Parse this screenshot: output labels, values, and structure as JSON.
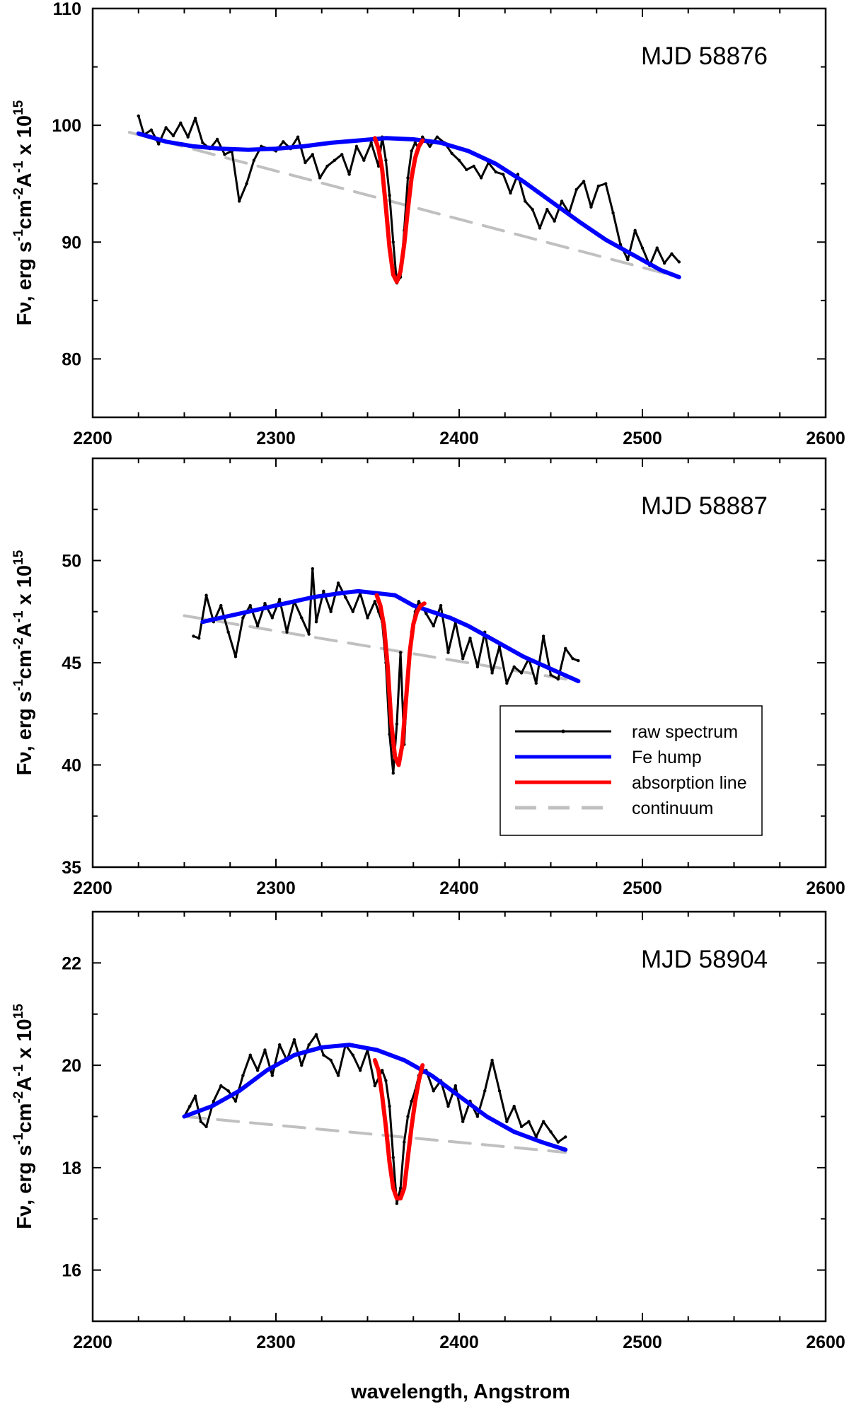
{
  "chart_data": {
    "type": "line",
    "xlabel": "wavelength, Angstrom",
    "ylabel_parts": {
      "prefix": "F",
      "nu": "ν",
      "main": ", erg s",
      "exp1": "-1",
      "mid1": "cm",
      "exp2": "-2",
      "mid2": "A",
      "exp3": "-1",
      "tail": " x 10",
      "exp4": "15"
    },
    "xlim": [
      2200,
      2600
    ],
    "xticks": [
      2200,
      2300,
      2400,
      2500,
      2600
    ],
    "legend": {
      "placement": "panel 2, lower right",
      "entries": [
        {
          "key": "raw",
          "label": "raw spectrum",
          "color": "#000000"
        },
        {
          "key": "fe",
          "label": "Fe hump",
          "color": "#0000ff"
        },
        {
          "key": "abs",
          "label": "absorption line",
          "color": "#ff0000"
        },
        {
          "key": "cont",
          "label": "continuum",
          "color": "#c0c0c0"
        }
      ]
    },
    "panels": [
      {
        "label": "MJD 58876",
        "ylim": [
          75,
          110
        ],
        "yticks": [
          80,
          90,
          100,
          110
        ],
        "raw_spectrum": {
          "x": [
            2225,
            2228,
            2232,
            2236,
            2240,
            2244,
            2248,
            2252,
            2256,
            2260,
            2264,
            2268,
            2272,
            2276,
            2280,
            2284,
            2288,
            2292,
            2296,
            2300,
            2304,
            2308,
            2312,
            2316,
            2320,
            2324,
            2328,
            2332,
            2336,
            2340,
            2344,
            2348,
            2352,
            2356,
            2358,
            2360,
            2362,
            2364,
            2366,
            2368,
            2370,
            2372,
            2374,
            2376,
            2378,
            2380,
            2384,
            2388,
            2392,
            2396,
            2400,
            2404,
            2408,
            2412,
            2416,
            2420,
            2424,
            2428,
            2432,
            2436,
            2440,
            2444,
            2448,
            2452,
            2456,
            2460,
            2464,
            2468,
            2472,
            2476,
            2480,
            2484,
            2488,
            2492,
            2496,
            2500,
            2504,
            2508,
            2512,
            2516,
            2520
          ],
          "y": [
            100.8,
            99.2,
            99.6,
            98.4,
            99.8,
            99.1,
            100.2,
            99.0,
            100.6,
            98.5,
            98.0,
            98.8,
            97.5,
            97.8,
            93.5,
            95.0,
            97.0,
            98.2,
            98.0,
            97.8,
            98.6,
            98.0,
            99.0,
            96.8,
            97.5,
            95.5,
            96.5,
            97.0,
            97.5,
            95.8,
            98.2,
            97.0,
            98.5,
            96.5,
            99.0,
            97.0,
            94.0,
            90.0,
            86.5,
            87.0,
            91.0,
            95.5,
            97.8,
            98.5,
            98.0,
            99.0,
            98.2,
            99.0,
            98.5,
            97.6,
            97.0,
            96.2,
            96.5,
            95.5,
            96.8,
            96.0,
            95.8,
            94.2,
            95.8,
            93.5,
            92.8,
            91.2,
            92.8,
            91.8,
            93.5,
            92.5,
            94.5,
            95.2,
            93.0,
            94.8,
            95.0,
            92.5,
            89.8,
            88.5,
            91.0,
            89.5,
            88.0,
            89.5,
            88.2,
            89.0,
            88.3
          ]
        },
        "fe_hump": {
          "x": [
            2225,
            2240,
            2255,
            2270,
            2285,
            2300,
            2315,
            2330,
            2345,
            2360,
            2375,
            2390,
            2405,
            2420,
            2435,
            2450,
            2465,
            2480,
            2495,
            2510,
            2520
          ],
          "y": [
            99.3,
            98.6,
            98.2,
            98.0,
            97.9,
            98.0,
            98.2,
            98.5,
            98.7,
            98.9,
            98.8,
            98.5,
            97.8,
            96.7,
            95.2,
            93.5,
            91.8,
            90.2,
            88.9,
            87.6,
            87.0
          ]
        },
        "absorption_line": {
          "x": [
            2354,
            2356,
            2358,
            2360,
            2362,
            2364,
            2366,
            2368,
            2370,
            2372,
            2374,
            2376,
            2378,
            2380
          ],
          "y": [
            98.9,
            98.0,
            96.2,
            93.0,
            89.5,
            87.2,
            86.6,
            87.5,
            89.8,
            92.8,
            95.5,
            97.2,
            98.2,
            98.7
          ]
        },
        "continuum": {
          "x": [
            2220,
            2520
          ],
          "y": [
            99.4,
            87.0
          ]
        }
      },
      {
        "label": "MJD 58887",
        "ylim": [
          35,
          55
        ],
        "yticks": [
          35,
          40,
          45,
          50
        ],
        "raw_spectrum": {
          "x": [
            2255,
            2258,
            2262,
            2266,
            2270,
            2274,
            2278,
            2282,
            2286,
            2290,
            2294,
            2298,
            2302,
            2306,
            2310,
            2314,
            2318,
            2320,
            2322,
            2326,
            2330,
            2334,
            2338,
            2342,
            2346,
            2350,
            2354,
            2356,
            2358,
            2360,
            2362,
            2364,
            2366,
            2368,
            2370,
            2372,
            2374,
            2376,
            2378,
            2382,
            2386,
            2390,
            2394,
            2398,
            2402,
            2406,
            2410,
            2414,
            2418,
            2422,
            2426,
            2430,
            2434,
            2438,
            2442,
            2446,
            2450,
            2454,
            2458,
            2462,
            2465
          ],
          "y": [
            46.3,
            46.2,
            48.3,
            47.0,
            47.8,
            46.5,
            45.3,
            47.2,
            47.8,
            46.8,
            47.9,
            47.2,
            48.1,
            46.5,
            48.0,
            47.2,
            46.4,
            49.6,
            47.0,
            48.5,
            47.5,
            48.9,
            48.2,
            47.5,
            48.4,
            47.2,
            48.0,
            47.5,
            47.0,
            45.0,
            41.5,
            39.6,
            42.0,
            45.5,
            41.0,
            44.5,
            46.5,
            47.5,
            48.0,
            47.4,
            46.8,
            47.8,
            45.5,
            47.0,
            45.2,
            46.2,
            44.8,
            46.5,
            44.5,
            45.8,
            44.0,
            44.8,
            44.5,
            45.2,
            44.0,
            46.3,
            44.4,
            44.2,
            45.7,
            45.2,
            45.1
          ]
        },
        "fe_hump": {
          "x": [
            2260,
            2275,
            2290,
            2305,
            2320,
            2335,
            2345,
            2355,
            2365,
            2375,
            2385,
            2395,
            2405,
            2415,
            2425,
            2435,
            2445,
            2455,
            2465
          ],
          "y": [
            47.0,
            47.3,
            47.6,
            47.9,
            48.2,
            48.4,
            48.5,
            48.4,
            48.3,
            47.8,
            47.5,
            47.2,
            46.8,
            46.3,
            45.8,
            45.3,
            44.9,
            44.5,
            44.1
          ]
        },
        "absorption_line": {
          "x": [
            2355,
            2357,
            2359,
            2361,
            2363,
            2365,
            2367,
            2369,
            2371,
            2373,
            2375,
            2377,
            2379,
            2381
          ],
          "y": [
            48.3,
            47.8,
            46.8,
            44.8,
            42.0,
            40.4,
            40.0,
            41.0,
            43.2,
            45.5,
            46.9,
            47.5,
            47.8,
            47.9
          ]
        },
        "continuum": {
          "x": [
            2250,
            2465
          ],
          "y": [
            47.3,
            44.1
          ]
        }
      },
      {
        "label": "MJD 58904",
        "ylim": [
          15,
          23
        ],
        "yticks": [
          16,
          18,
          20,
          22
        ],
        "raw_spectrum": {
          "x": [
            2250,
            2253,
            2256,
            2259,
            2262,
            2266,
            2270,
            2274,
            2278,
            2282,
            2286,
            2290,
            2294,
            2298,
            2302,
            2306,
            2310,
            2314,
            2318,
            2322,
            2326,
            2330,
            2334,
            2338,
            2342,
            2346,
            2350,
            2354,
            2358,
            2360,
            2362,
            2364,
            2366,
            2368,
            2370,
            2372,
            2374,
            2376,
            2378,
            2382,
            2386,
            2390,
            2394,
            2398,
            2402,
            2406,
            2410,
            2414,
            2418,
            2422,
            2426,
            2430,
            2434,
            2438,
            2442,
            2446,
            2450,
            2454,
            2458
          ],
          "y": [
            19.0,
            19.2,
            19.4,
            18.9,
            18.8,
            19.3,
            19.6,
            19.5,
            19.3,
            19.8,
            20.2,
            19.9,
            20.3,
            19.8,
            20.4,
            20.1,
            20.5,
            20.0,
            20.4,
            20.6,
            20.2,
            20.1,
            19.8,
            20.4,
            20.2,
            19.9,
            20.3,
            19.6,
            19.9,
            19.7,
            19.2,
            18.2,
            17.3,
            17.6,
            18.5,
            19.0,
            19.3,
            19.5,
            19.8,
            19.9,
            19.5,
            19.7,
            19.2,
            19.6,
            18.9,
            19.3,
            19.0,
            19.5,
            20.1,
            19.5,
            18.9,
            19.2,
            18.8,
            18.9,
            18.6,
            18.9,
            18.7,
            18.5,
            18.6
          ]
        },
        "fe_hump": {
          "x": [
            2250,
            2265,
            2280,
            2295,
            2310,
            2325,
            2340,
            2355,
            2370,
            2385,
            2400,
            2415,
            2430,
            2445,
            2458
          ],
          "y": [
            19.0,
            19.2,
            19.5,
            19.9,
            20.2,
            20.35,
            20.4,
            20.3,
            20.1,
            19.8,
            19.4,
            19.0,
            18.7,
            18.5,
            18.35
          ]
        },
        "absorption_line": {
          "x": [
            2354,
            2356,
            2358,
            2360,
            2362,
            2364,
            2366,
            2368,
            2370,
            2372,
            2374,
            2376,
            2378,
            2380
          ],
          "y": [
            20.1,
            19.9,
            19.4,
            18.8,
            18.1,
            17.6,
            17.4,
            17.4,
            17.6,
            18.2,
            18.8,
            19.3,
            19.7,
            20.0
          ]
        },
        "continuum": {
          "x": [
            2250,
            2458
          ],
          "y": [
            19.0,
            18.3
          ]
        }
      }
    ]
  }
}
